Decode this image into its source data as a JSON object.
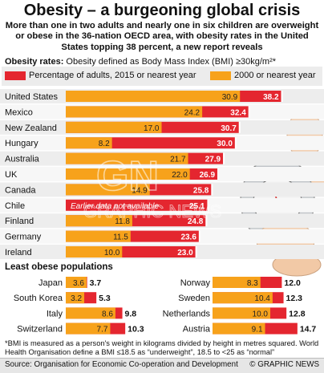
{
  "title": "Obesity – a burgeoning global crisis",
  "subtitle": "More than one in two adults and nearly one in six children are overweight or obese in the 36-nation OECD area, with obesity rates in the United States topping 38 percent, a new report reveals",
  "legend": {
    "heading_bold": "Obesity rates:",
    "heading_text": " Obesity defined as Body Mass Index (BMI) ≥30kg/m²*",
    "series_2015": "Percentage of adults, 2015 or nearest year",
    "series_2000": "2000 or nearest year"
  },
  "colors": {
    "red": "#e4262f",
    "orange": "#f7a21b",
    "bg_grey": "#ececec"
  },
  "watermark_text": "GRAPHIC NEWS",
  "chile_note": "Earlier data not available",
  "least_obese_title": "Least obese populations",
  "footnote": "*BMI is measured as a person's weight in kilograms divided by height in metres squared. World Health Organisation define a BMI ≤18.5 as “underweight”, 18.5 to <25 as “normal”",
  "source": "Source: Organisation for Economic Co-operation and Development",
  "credit": "© GRAPHIC NEWS",
  "chart_data": [
    {
      "type": "bar",
      "title": "Obesity rates",
      "categories": [
        "United States",
        "Mexico",
        "New Zealand",
        "Hungary",
        "Australia",
        "UK",
        "Canada",
        "Chile",
        "Finland",
        "Germany",
        "Ireland"
      ],
      "series": [
        {
          "name": "Percentage of adults, 2015 or nearest year",
          "values": [
            38.2,
            32.4,
            30.7,
            30.0,
            27.9,
            26.9,
            25.8,
            25.1,
            24.8,
            23.6,
            23.0
          ]
        },
        {
          "name": "2000 or nearest year",
          "values": [
            30.9,
            24.2,
            17.0,
            8.2,
            21.7,
            22.0,
            14.9,
            null,
            11.8,
            11.5,
            10.0
          ]
        }
      ],
      "xlim": [
        0,
        40
      ]
    },
    {
      "type": "bar",
      "title": "Least obese populations",
      "categories": [
        "Japan",
        "South Korea",
        "Italy",
        "Switzerland"
      ],
      "series": [
        {
          "name": "Percentage of adults, 2015 or nearest year",
          "values": [
            3.7,
            5.3,
            9.8,
            10.3
          ]
        },
        {
          "name": "2000 or nearest year",
          "values": [
            3.6,
            3.2,
            8.6,
            7.7
          ]
        }
      ],
      "xlim": [
        0,
        16
      ]
    },
    {
      "type": "bar",
      "title": "Least obese populations",
      "categories": [
        "Norway",
        "Sweden",
        "Netherlands",
        "Austria"
      ],
      "series": [
        {
          "name": "Percentage of adults, 2015 or nearest year",
          "values": [
            12.0,
            12.3,
            12.8,
            14.7
          ]
        },
        {
          "name": "2000 or nearest year",
          "values": [
            8.3,
            10.4,
            10.0,
            9.1
          ]
        }
      ],
      "xlim": [
        0,
        16
      ]
    }
  ]
}
